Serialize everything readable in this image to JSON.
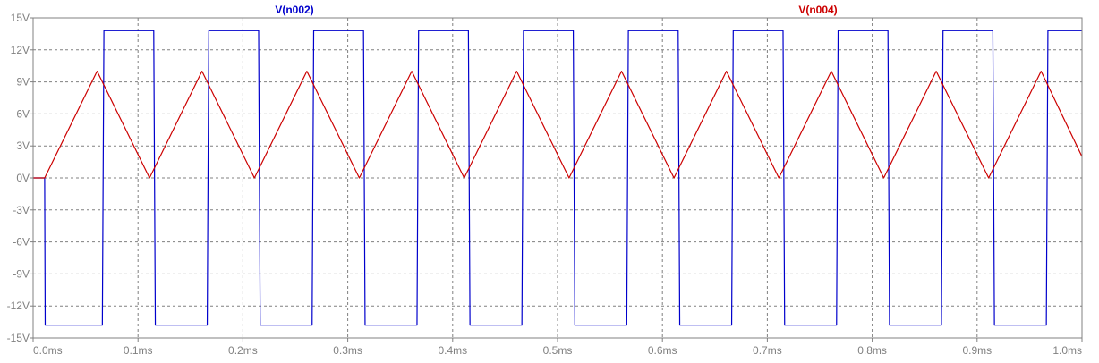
{
  "chart_data": {
    "type": "line",
    "title": "",
    "xlabel": "",
    "ylabel": "",
    "xlim": [
      0,
      1.0
    ],
    "ylim": [
      -15,
      15
    ],
    "x_unit": "ms",
    "y_unit": "V",
    "grid": true,
    "x_ticks": [
      0.0,
      0.1,
      0.2,
      0.3,
      0.4,
      0.5,
      0.6,
      0.7,
      0.8,
      0.9,
      1.0
    ],
    "x_tick_labels": [
      "0.0ms",
      "0.1ms",
      "0.2ms",
      "0.3ms",
      "0.4ms",
      "0.5ms",
      "0.6ms",
      "0.7ms",
      "0.8ms",
      "0.9ms",
      "1.0ms"
    ],
    "y_ticks": [
      15,
      12,
      9,
      6,
      3,
      0,
      -3,
      -6,
      -9,
      -12,
      -15
    ],
    "y_tick_labels": [
      "15V",
      "12V",
      "9V",
      "6V",
      "3V",
      "0V",
      "-3V",
      "-6V",
      "-9V",
      "-12V",
      "-15V"
    ],
    "series": [
      {
        "name": "V(n002)",
        "color": "#0000cc",
        "points": [
          [
            0.0,
            0
          ],
          [
            0.011,
            0
          ],
          [
            0.0115,
            -13.8
          ],
          [
            0.066,
            -13.8
          ],
          [
            0.0675,
            13.8
          ],
          [
            0.115,
            13.8
          ],
          [
            0.1165,
            -13.8
          ],
          [
            0.166,
            -13.8
          ],
          [
            0.1675,
            13.8
          ],
          [
            0.215,
            13.8
          ],
          [
            0.2165,
            -13.8
          ],
          [
            0.266,
            -13.8
          ],
          [
            0.2675,
            13.8
          ],
          [
            0.315,
            13.8
          ],
          [
            0.3165,
            -13.8
          ],
          [
            0.366,
            -13.8
          ],
          [
            0.3675,
            13.8
          ],
          [
            0.415,
            13.8
          ],
          [
            0.4165,
            -13.8
          ],
          [
            0.466,
            -13.8
          ],
          [
            0.4675,
            13.8
          ],
          [
            0.515,
            13.8
          ],
          [
            0.5165,
            -13.8
          ],
          [
            0.566,
            -13.8
          ],
          [
            0.5675,
            13.8
          ],
          [
            0.615,
            13.8
          ],
          [
            0.6165,
            -13.8
          ],
          [
            0.666,
            -13.8
          ],
          [
            0.6675,
            13.8
          ],
          [
            0.715,
            13.8
          ],
          [
            0.7165,
            -13.8
          ],
          [
            0.766,
            -13.8
          ],
          [
            0.7675,
            13.8
          ],
          [
            0.815,
            13.8
          ],
          [
            0.8165,
            -13.8
          ],
          [
            0.866,
            -13.8
          ],
          [
            0.8675,
            13.8
          ],
          [
            0.915,
            13.8
          ],
          [
            0.9165,
            -13.8
          ],
          [
            0.966,
            -13.8
          ],
          [
            0.9675,
            13.8
          ],
          [
            1.0,
            13.8
          ]
        ]
      },
      {
        "name": "V(n004)",
        "color": "#cc0000",
        "points": [
          [
            0.0,
            0
          ],
          [
            0.011,
            0
          ],
          [
            0.061,
            10
          ],
          [
            0.111,
            0
          ],
          [
            0.161,
            10
          ],
          [
            0.211,
            0
          ],
          [
            0.261,
            10
          ],
          [
            0.311,
            0
          ],
          [
            0.361,
            10
          ],
          [
            0.411,
            0
          ],
          [
            0.461,
            10
          ],
          [
            0.511,
            0
          ],
          [
            0.561,
            10
          ],
          [
            0.611,
            0
          ],
          [
            0.661,
            10
          ],
          [
            0.711,
            0
          ],
          [
            0.761,
            10
          ],
          [
            0.811,
            0
          ],
          [
            0.861,
            10
          ],
          [
            0.911,
            0
          ],
          [
            0.961,
            10
          ],
          [
            1.0,
            2.0
          ]
        ]
      }
    ]
  }
}
